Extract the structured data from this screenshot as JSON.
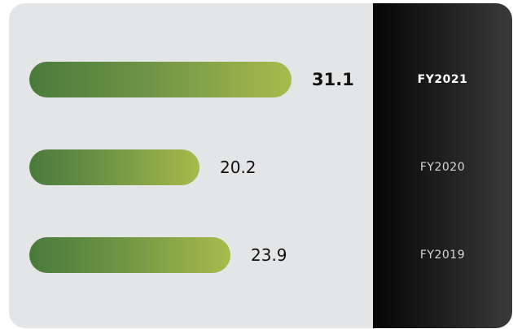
{
  "colors": {
    "card_background": "#e4e5e7",
    "bar_gradient_start": "#4a7a3c",
    "bar_gradient_end": "#a8bb4c",
    "side_panel_background": "#111111"
  },
  "chart_data": {
    "type": "bar",
    "orientation": "horizontal",
    "categories": [
      "FY2021",
      "FY2020",
      "FY2019"
    ],
    "values": [
      31.1,
      20.2,
      23.9
    ],
    "value_labels": [
      "31.1",
      "20.2",
      "23.9"
    ],
    "highlighted_category": "FY2021",
    "title": "",
    "xlabel": "",
    "ylabel": "",
    "xlim": [
      0,
      31.1
    ],
    "grid": false,
    "legend": "none"
  }
}
